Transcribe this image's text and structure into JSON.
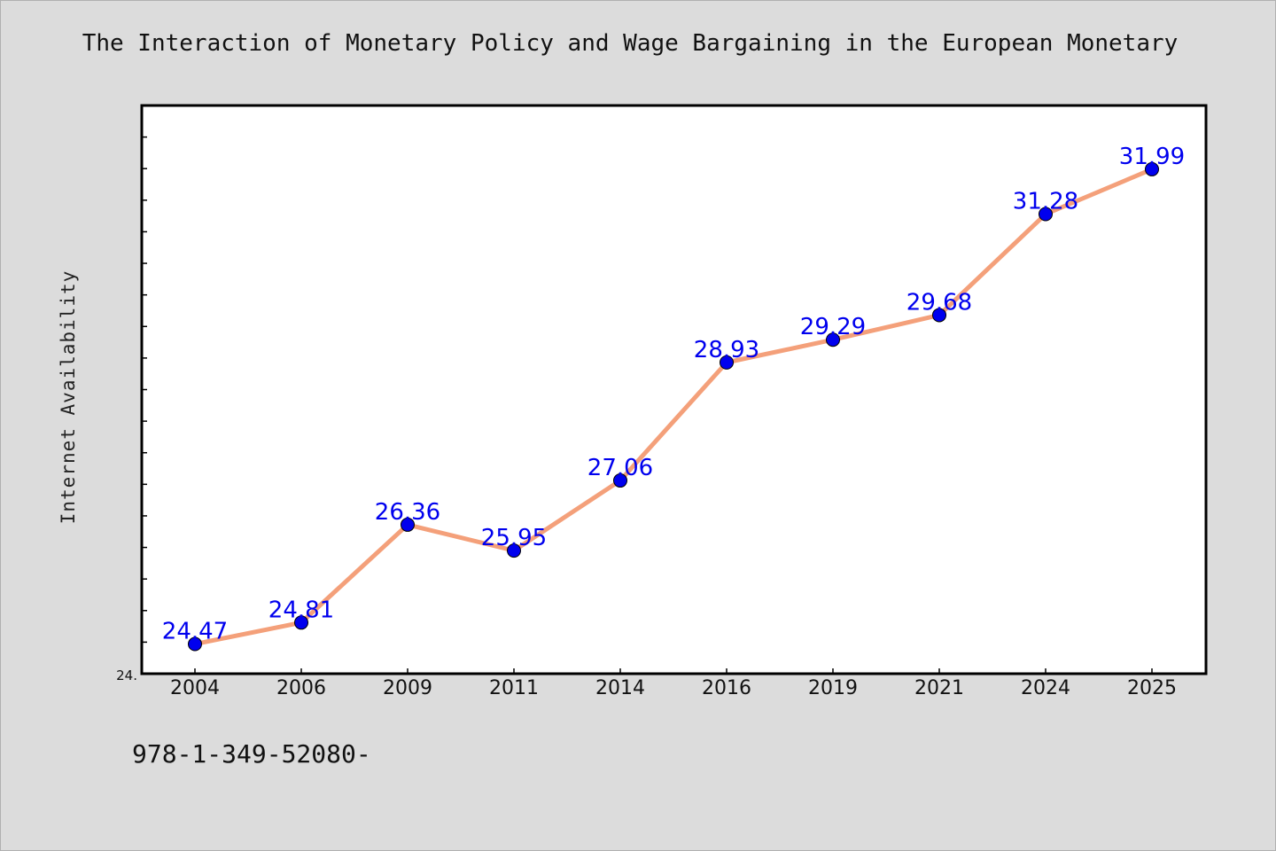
{
  "colors": {
    "background": "#dcdcdc",
    "plot_background": "#ffffff",
    "line": "#f4a07a",
    "marker": "#0000ee",
    "label": "#0000ee"
  },
  "footnote": "978-1-349-52080-",
  "chart_data": {
    "type": "line",
    "title": "The Interaction of Monetary Policy and Wage Bargaining in the European Monetary",
    "xlabel": "",
    "ylabel": "Internet Availability",
    "categories": [
      "2004",
      "2006",
      "2009",
      "2011",
      "2014",
      "2016",
      "2019",
      "2021",
      "2024",
      "2025"
    ],
    "series": [
      {
        "values": [
          24.47,
          24.81,
          26.36,
          25.95,
          27.06,
          28.93,
          29.29,
          29.68,
          31.28,
          31.99
        ],
        "labels": [
          "24.47",
          "24.81",
          "26.36",
          "25.95",
          "27.06",
          "28.93",
          "29.29",
          "29.68",
          "31.28",
          "31.99"
        ]
      }
    ],
    "ylim": [
      24.0,
      33.0
    ],
    "y_tick_label": "24.",
    "grid": false,
    "legend": "none"
  }
}
